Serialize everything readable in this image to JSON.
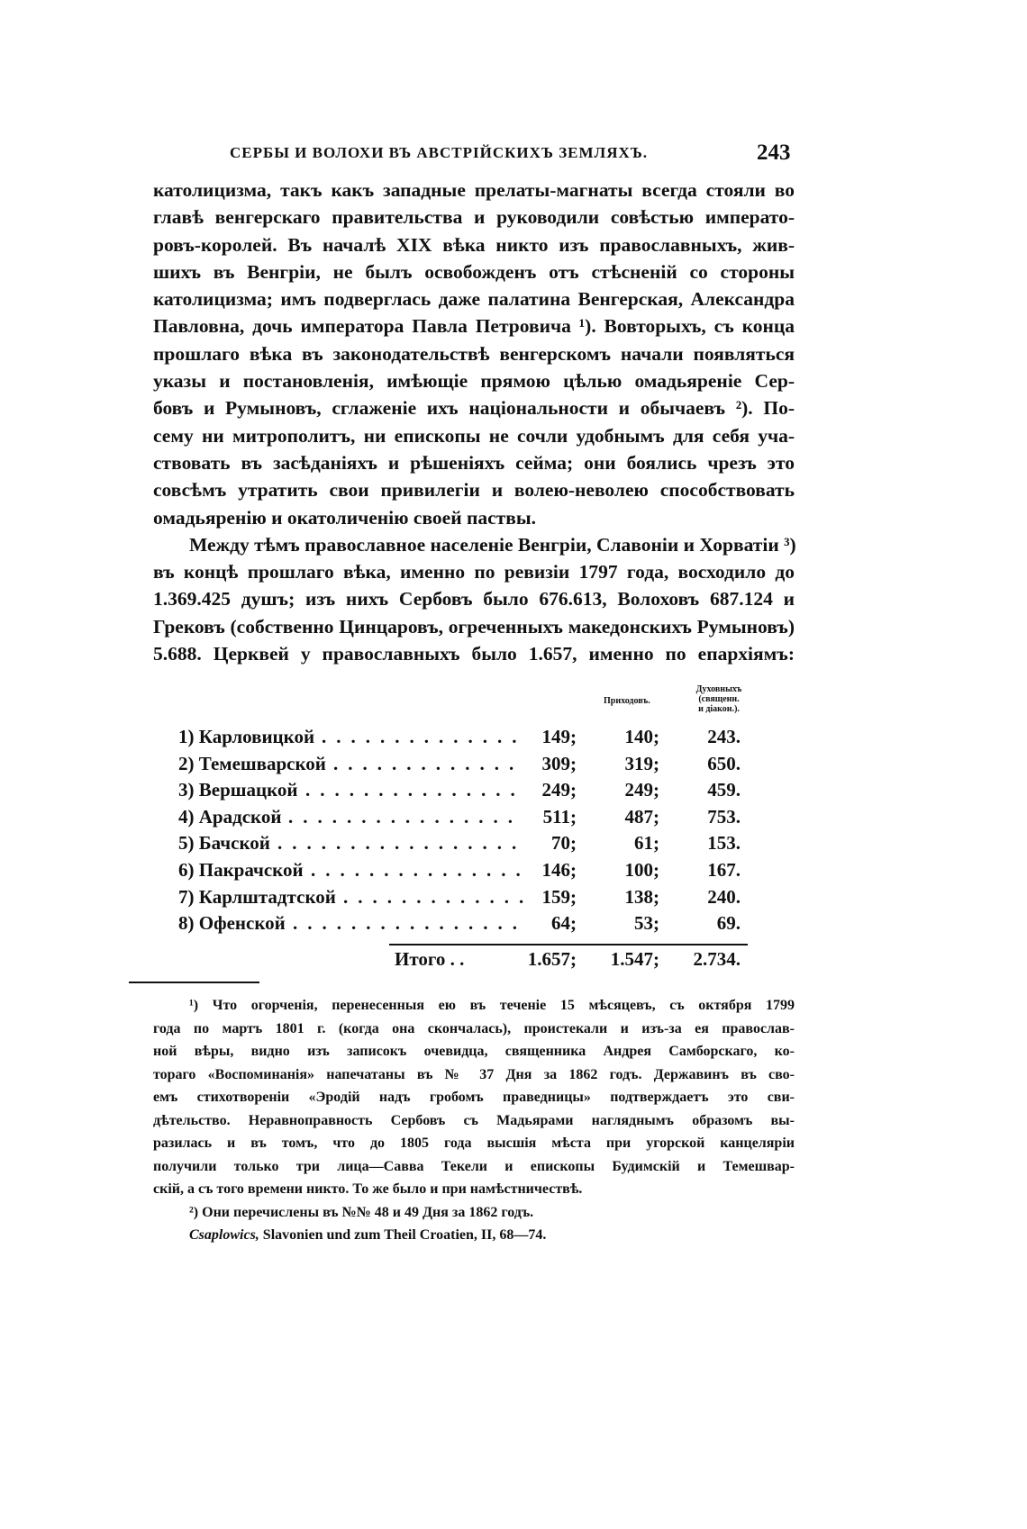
{
  "header": {
    "running_title": "СЕРБЫ И ВОЛОХИ ВЪ АВСТРІЙСКИХЪ ЗЕМЛЯХЪ.",
    "page_number": "243"
  },
  "body_lines": [
    "католицизма, такъ какъ западные прелаты-магнаты всегда стояли во",
    "главѣ венгерскаго правительства и руководили совѣстью императо-",
    "ровъ-королей. Въ началѣ XIX вѣка никто изъ православныхъ, жив-",
    "шихъ въ Венгріи, не былъ освобожденъ отъ стѣсненій со стороны",
    "католицизма; имъ подверглась даже палатина Венгерская, Александра",
    "Павловна, дочь императора Павла Петровича ¹). Вовторыхъ, съ конца",
    "прошлаго вѣка въ законодательствѣ венгерскомъ начали появляться",
    "указы и постановленія, имѣющіе прямою цѣлью омадьяреніе Сер-",
    "бовъ и Румыновъ, сглаженіе ихъ національности и обычаевъ ²). По-",
    "сему ни митрополитъ, ни епископы не сочли удобнымъ для себя уча-",
    "ствовать въ засѣданіяхъ и рѣшеніяхъ сейма; они боялись чрезъ это",
    "совсѣмъ утратить свои привилегіи и волею-неволею способствовать",
    "омадьяренію и окатоличенію своей паствы.",
    "Между тѣмъ православное населеніе Венгріи, Славоніи и Хорватіи ³)",
    "въ концѣ прошлаго вѣка, именно по ревизіи 1797 года, восходило до",
    "1.369.425 душъ; изъ нихъ Сербовъ было 676.613, Волоховъ 687.124 и",
    "Грековъ (собственно Цинцаровъ, огреченныхъ македонскихъ Румыновъ)",
    "5.688. Церквей у православныхъ было 1.657, именно по епархіямъ:"
  ],
  "table": {
    "headers": {
      "parishes": "Приходовъ.",
      "clergy_1": "Духовныхъ",
      "clergy_2": "(священн.",
      "clergy_3": "и діакон.)."
    },
    "rows": [
      {
        "name": "1) Карловицкой",
        "churches": "149;",
        "parishes": "140;",
        "clergy": "243."
      },
      {
        "name": "2) Темешварской",
        "churches": "309;",
        "parishes": "319;",
        "clergy": "650."
      },
      {
        "name": "3) Вершацкой",
        "churches": "249;",
        "parishes": "249;",
        "clergy": "459."
      },
      {
        "name": "4) Арадской",
        "churches": "511;",
        "parishes": "487;",
        "clergy": "753."
      },
      {
        "name": "5) Бачской",
        "churches": "70;",
        "parishes": "61;",
        "clergy": "153."
      },
      {
        "name": "6) Пакрачской",
        "churches": "146;",
        "parishes": "100;",
        "clergy": "167."
      },
      {
        "name": "7) Карлштадтской",
        "churches": "159;",
        "parishes": "138;",
        "clergy": "240."
      },
      {
        "name": "8) Офенской",
        "churches": "64;",
        "parishes": "53;",
        "clergy": "69."
      }
    ],
    "total": {
      "label": "Итого . .",
      "churches": "1.657;",
      "parishes": "1.547;",
      "clergy": "2.734."
    }
  },
  "footnotes": [
    "¹) Что огорченія, перенесенныя ею въ теченіе 15 мѣсяцевъ, съ октября 1799",
    "года по мартъ 1801 г. (когда она скончалась), проистекали и изъ-за ея православ-",
    "ной вѣры, видно изъ записокъ очевидца, священника Андрея Самборскаго, ко-",
    "тораго «Воспоминанія» напечатаны въ № 37 Дня за 1862 годъ. Державинъ въ сво-",
    "емъ стихотвореніи «Эродій надъ гробомъ праведницы» подтверждаетъ это сви-",
    "дѣтельство. Неравноправность Сербовъ съ Мадьярами нагляднымъ образомъ вы-",
    "разилась и въ томъ, что до 1805 года высшія мѣста при угорской канцеляріи",
    "получили только три лица—Савва Текели и епископы Будимскій и Темешвар-",
    "скій, а съ того времени никто. То же было и при намѣстничествѣ.",
    "²) Они перечислены въ №№ 48 и 49 Дня за 1862 годъ."
  ],
  "footnote3": {
    "author": "Csaplowics,",
    "rest": " Slavonien und zum Theil Croatien, II, 68—74."
  }
}
